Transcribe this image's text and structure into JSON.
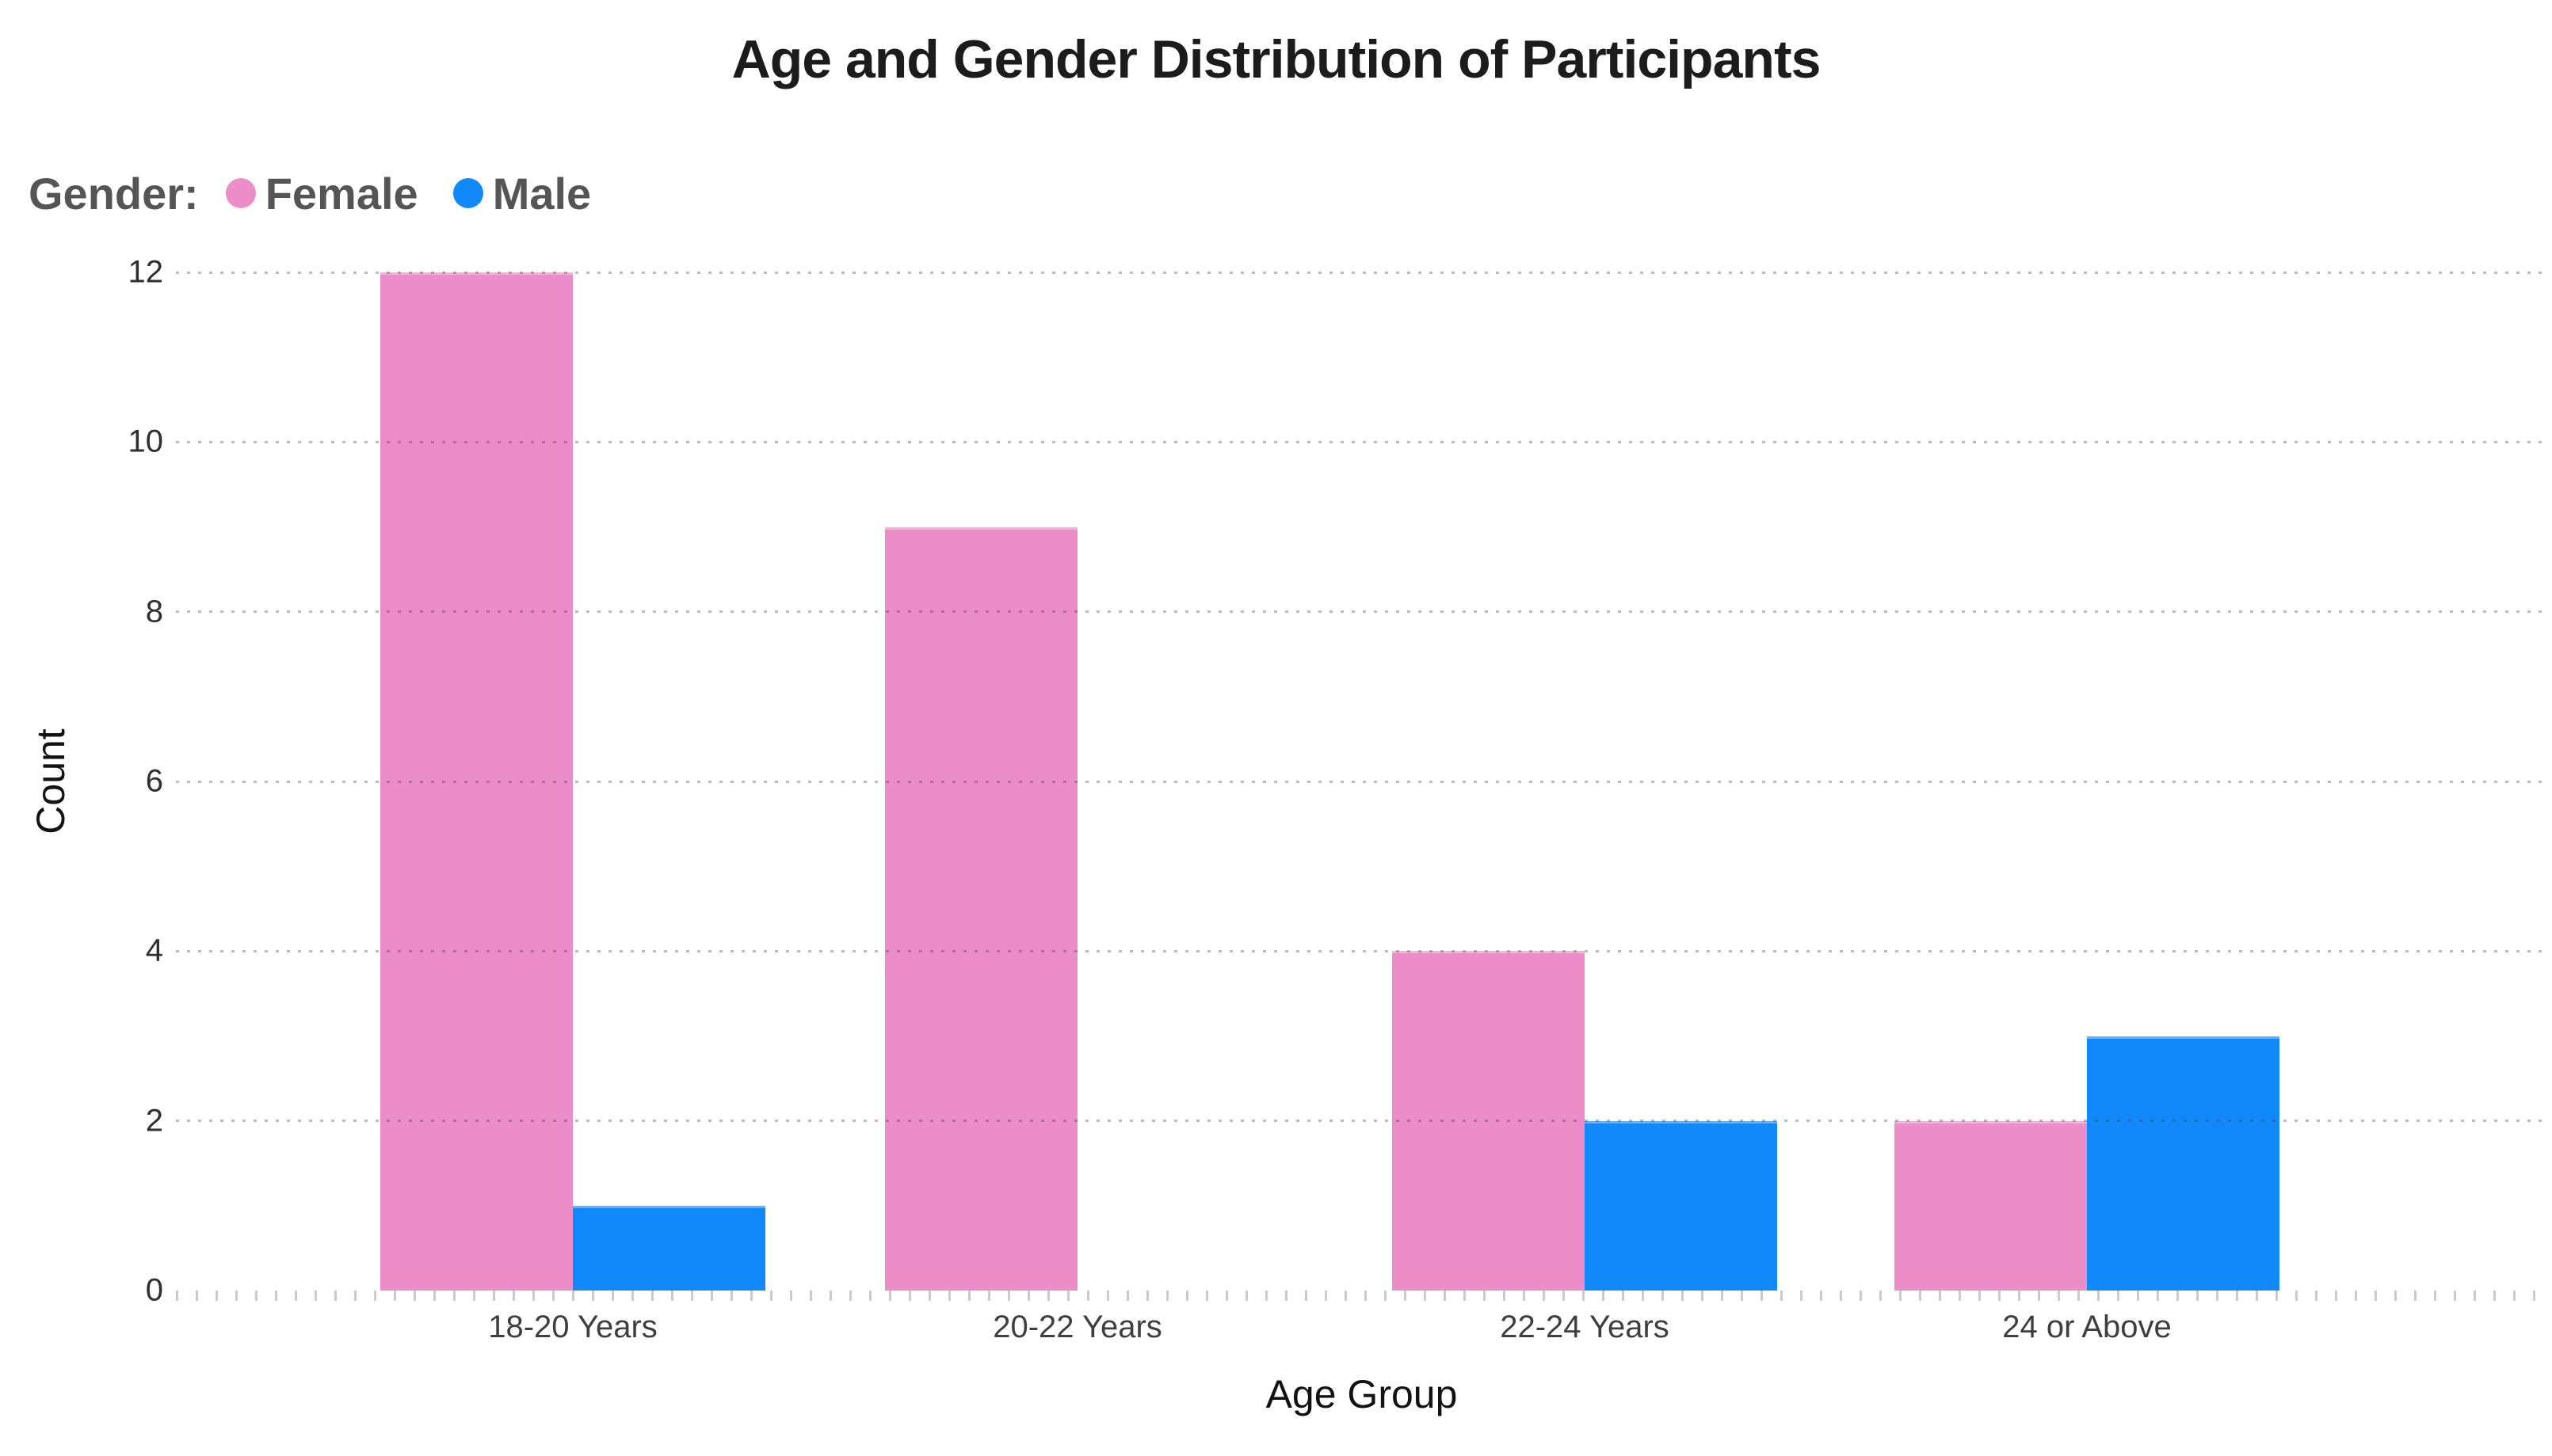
{
  "chart_data": {
    "type": "bar",
    "title": "Age and Gender Distribution of Participants",
    "legend_title": "Gender:",
    "legend_position": "top-left",
    "categories": [
      "18-20 Years",
      "20-22 Years",
      "22-24 Years",
      "24 or Above"
    ],
    "series": [
      {
        "name": "Female",
        "color": "#EC8CC8",
        "values": [
          12,
          9,
          4,
          2
        ]
      },
      {
        "name": "Male",
        "color": "#1189FA",
        "values": [
          1,
          0,
          2,
          3
        ]
      }
    ],
    "xlabel": "Age Group",
    "ylabel": "Count",
    "yticks": [
      0,
      2,
      4,
      6,
      8,
      10,
      12
    ],
    "ylim": [
      0,
      12
    ],
    "grid": "horizontal-dotted",
    "background": "#ffffff",
    "text_colors": {
      "title": "#1c1c1c",
      "legend": "#555555",
      "tick_labels": "#3e3e3e",
      "axis_titles": "#121212"
    }
  }
}
